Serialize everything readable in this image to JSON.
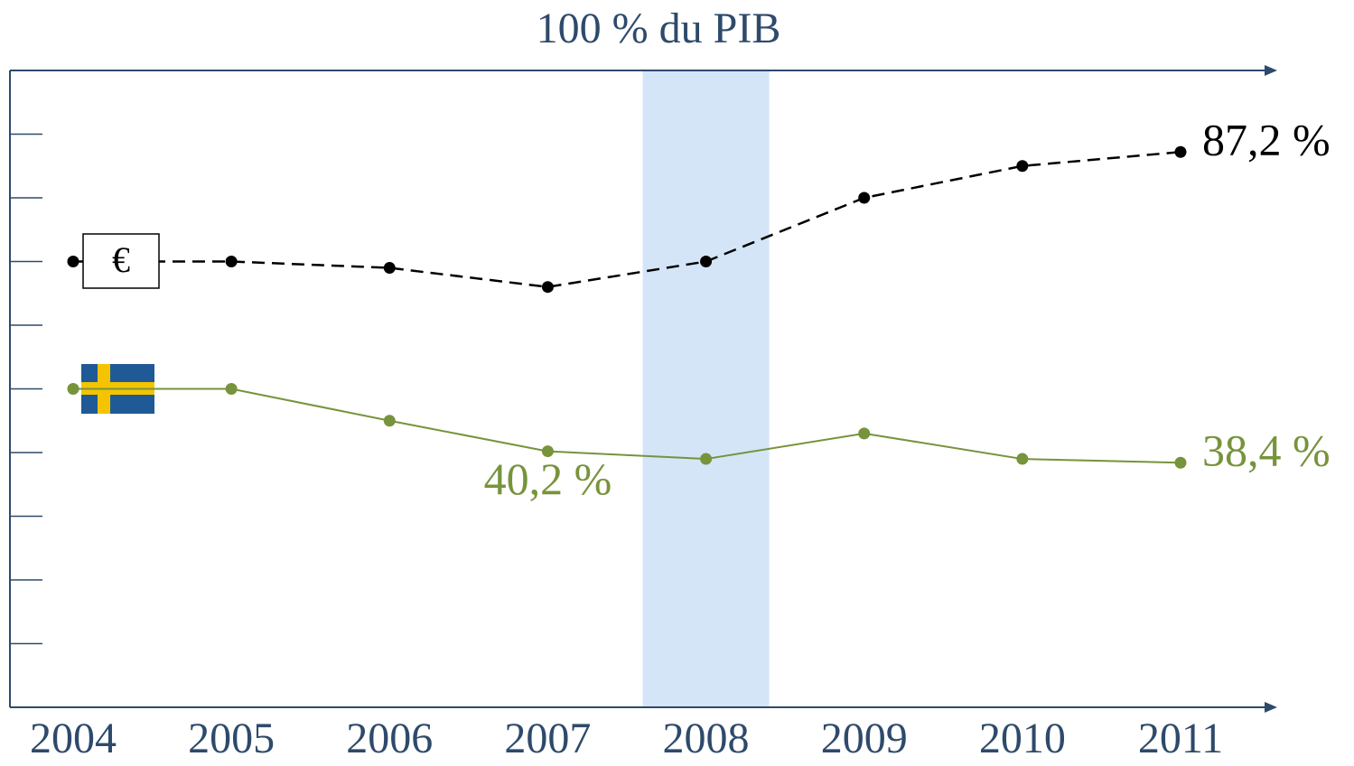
{
  "chart_data": {
    "type": "line",
    "title": "100 % du PIB",
    "categories": [
      "2004",
      "2005",
      "2006",
      "2007",
      "2008",
      "2009",
      "2010",
      "2011"
    ],
    "series": [
      {
        "name": "€",
        "color": "#000000",
        "dashed": true,
        "values": [
          70,
          70,
          69,
          66,
          70,
          80,
          85,
          87.2
        ],
        "value_labels": [
          null,
          null,
          null,
          null,
          null,
          null,
          null,
          "87,2 %"
        ]
      },
      {
        "color": "#77933c",
        "dashed": false,
        "values": [
          50,
          50,
          45,
          40.2,
          39,
          43,
          39,
          38.4
        ],
        "value_labels": [
          null,
          null,
          null,
          "40,2 %",
          null,
          null,
          null,
          "38,4 %"
        ]
      }
    ],
    "ylim": [
      0,
      100
    ],
    "yticks": [
      10,
      20,
      30,
      40,
      50,
      60,
      70,
      80,
      90
    ],
    "highlight": "2008"
  }
}
